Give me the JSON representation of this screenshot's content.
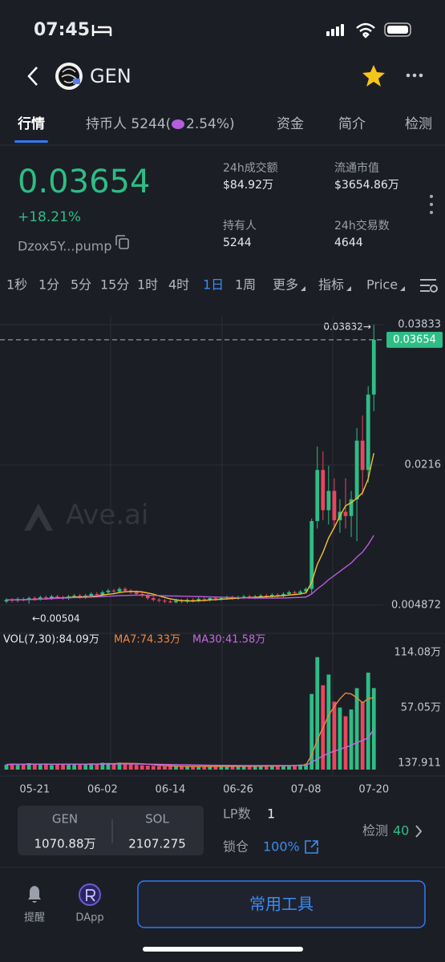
{
  "status_bar": {
    "time": "07:45"
  },
  "header": {
    "symbol": "GEN"
  },
  "tabs": {
    "market": "行情",
    "holders": "持币人 5244(",
    "holders_pct": "2.54%)",
    "funds": "资金",
    "intro": "简介",
    "check": "检测"
  },
  "price": {
    "value": "0.03654",
    "change": "+18.21%",
    "address": "Dzox5Y...pump"
  },
  "stats": [
    {
      "label": "24h成交额",
      "value": "$84.92万"
    },
    {
      "label": "流通市值",
      "value": "$3654.86万"
    },
    {
      "label": "持有人",
      "value": "5244"
    },
    {
      "label": "24h交易数",
      "value": "4644"
    }
  ],
  "intervals": [
    "1秒",
    "1分",
    "5分",
    "15分",
    "1时",
    "4时",
    "1日",
    "1周",
    "更多",
    "指标",
    "Price"
  ],
  "chart_data": [
    {
      "type": "candlestick",
      "up_color": "#2ebd85",
      "down_color": "#e8475f",
      "grid": true,
      "ylim": [
        0.0015,
        0.0393
      ],
      "yticks": [
        0.004872,
        0.0216,
        0.03833
      ],
      "current_price": 0.03654,
      "max_label": "0.03832→",
      "min_label": "←0.00504",
      "watermark": "Ave.ai",
      "open": [
        0.0053,
        0.0055,
        0.0054,
        0.0056,
        0.0055,
        0.0057,
        0.0056,
        0.0058,
        0.0057,
        0.0059,
        0.0058,
        0.0057,
        0.0059,
        0.006,
        0.0058,
        0.006,
        0.0062,
        0.0061,
        0.0064,
        0.0066,
        0.0065,
        0.0068,
        0.0066,
        0.0064,
        0.0062,
        0.006,
        0.0057,
        0.0055,
        0.0054,
        0.0053,
        0.0052,
        0.0054,
        0.0053,
        0.0055,
        0.0054,
        0.0056,
        0.0055,
        0.0057,
        0.0056,
        0.0057,
        0.0058,
        0.0057,
        0.0058,
        0.0059,
        0.0058,
        0.0059,
        0.006,
        0.0059,
        0.0061,
        0.006,
        0.0062,
        0.0064,
        0.0063,
        0.0065,
        0.0068,
        0.0149,
        0.021,
        0.0162,
        0.0185,
        0.015,
        0.016,
        0.0155,
        0.0175,
        0.0245,
        0.021,
        0.03
      ],
      "high": [
        0.0057,
        0.0057,
        0.0058,
        0.0058,
        0.0059,
        0.0059,
        0.006,
        0.006,
        0.0061,
        0.0061,
        0.006,
        0.0061,
        0.0062,
        0.0062,
        0.0062,
        0.0064,
        0.0064,
        0.0066,
        0.0068,
        0.0068,
        0.007,
        0.007,
        0.0068,
        0.0066,
        0.0064,
        0.0062,
        0.0059,
        0.0057,
        0.0056,
        0.0055,
        0.0056,
        0.0056,
        0.0057,
        0.0057,
        0.0058,
        0.0058,
        0.0059,
        0.0059,
        0.0059,
        0.006,
        0.006,
        0.006,
        0.0061,
        0.0061,
        0.0061,
        0.0062,
        0.0062,
        0.0063,
        0.0063,
        0.0064,
        0.0066,
        0.0066,
        0.0067,
        0.007,
        0.0152,
        0.0238,
        0.0232,
        0.0215,
        0.02,
        0.0175,
        0.02,
        0.0185,
        0.026,
        0.0275,
        0.031,
        0.03832
      ],
      "low": [
        0.0051,
        0.0052,
        0.0052,
        0.0053,
        0.00504,
        0.0054,
        0.0054,
        0.0055,
        0.0055,
        0.0056,
        0.0055,
        0.0055,
        0.0057,
        0.0056,
        0.0056,
        0.0058,
        0.0059,
        0.0059,
        0.0062,
        0.0063,
        0.0063,
        0.0064,
        0.0062,
        0.006,
        0.0058,
        0.0055,
        0.0053,
        0.0052,
        0.0051,
        0.0051,
        0.0051,
        0.0051,
        0.0051,
        0.0052,
        0.0052,
        0.0053,
        0.0053,
        0.0054,
        0.0054,
        0.0055,
        0.0055,
        0.0055,
        0.0056,
        0.0056,
        0.0056,
        0.0057,
        0.0057,
        0.0057,
        0.0058,
        0.0058,
        0.006,
        0.0061,
        0.0061,
        0.0063,
        0.0062,
        0.014,
        0.015,
        0.0145,
        0.014,
        0.0135,
        0.014,
        0.013,
        0.0125,
        0.018,
        0.0195,
        0.028
      ],
      "close": [
        0.0055,
        0.0054,
        0.0056,
        0.0055,
        0.0057,
        0.0056,
        0.0058,
        0.0057,
        0.0059,
        0.0058,
        0.0057,
        0.0059,
        0.006,
        0.0058,
        0.006,
        0.0062,
        0.0061,
        0.0064,
        0.0066,
        0.0065,
        0.0068,
        0.0066,
        0.0064,
        0.0062,
        0.006,
        0.0057,
        0.0055,
        0.0054,
        0.0053,
        0.0052,
        0.0054,
        0.0053,
        0.0055,
        0.0054,
        0.0056,
        0.0055,
        0.0057,
        0.0056,
        0.0057,
        0.0058,
        0.0057,
        0.0058,
        0.0059,
        0.0058,
        0.0059,
        0.006,
        0.0059,
        0.0061,
        0.006,
        0.0062,
        0.0064,
        0.0063,
        0.0065,
        0.0068,
        0.0149,
        0.021,
        0.0162,
        0.0185,
        0.015,
        0.016,
        0.0155,
        0.0175,
        0.0245,
        0.021,
        0.03,
        0.03654
      ],
      "lines": [
        {
          "color": "#f2c12e",
          "values": [
            0.0055,
            0.0055,
            0.0055,
            0.0055,
            0.00554,
            0.00555,
            0.00559,
            0.00561,
            0.00569,
            0.00571,
            0.00574,
            0.00577,
            0.00583,
            0.00583,
            0.00587,
            0.00591,
            0.00596,
            0.00606,
            0.00616,
            0.00623,
            0.00637,
            0.00646,
            0.00649,
            0.0065,
            0.00644,
            0.00631,
            0.00617,
            0.00597,
            0.00579,
            0.00561,
            0.0055,
            0.0054,
            0.00537,
            0.00536,
            0.00539,
            0.00541,
            0.00549,
            0.00551,
            0.00557,
            0.00561,
            0.00566,
            0.00569,
            0.00574,
            0.00576,
            0.0058,
            0.00584,
            0.00586,
            0.00591,
            0.00594,
            0.00599,
            0.00607,
            0.00613,
            0.0062,
            0.00633,
            0.00759,
            0.00973,
            0.01116,
            0.01289,
            0.01413,
            0.01549,
            0.01673,
            0.0171,
            0.0176,
            0.01829,
            0.01993,
            0.02301
          ]
        },
        {
          "color": "#b95be0",
          "values": [
            0.0055,
            0.0055,
            0.0055,
            0.0055,
            0.00554,
            0.00555,
            0.00559,
            0.00561,
            0.00565,
            0.00568,
            0.0057,
            0.00573,
            0.00576,
            0.00578,
            0.0058,
            0.00583,
            0.00585,
            0.00589,
            0.00593,
            0.00596,
            0.006,
            0.00602,
            0.00604,
            0.00605,
            0.00605,
            0.00604,
            0.00602,
            0.006,
            0.00598,
            0.00596,
            0.00595,
            0.00593,
            0.00592,
            0.0059,
            0.00589,
            0.00587,
            0.00585,
            0.00583,
            0.00581,
            0.00579,
            0.00577,
            0.00575,
            0.00573,
            0.00572,
            0.00571,
            0.0057,
            0.0057,
            0.0057,
            0.00571,
            0.00572,
            0.00574,
            0.00576,
            0.00579,
            0.00583,
            0.0062,
            0.0068,
            0.0073,
            0.0079,
            0.0084,
            0.0089,
            0.0094,
            0.0099,
            0.0106,
            0.0112,
            0.0121,
            0.0132
          ]
        }
      ]
    },
    {
      "type": "bar",
      "up_color": "#2ebd85",
      "down_color": "#e8475f",
      "grid": false,
      "legend": [
        "VOL(7,30):84.09万",
        "MA7:74.33万",
        "MA30:41.58万"
      ],
      "ylim": [
        0,
        1240000
      ],
      "yticks": [
        137.911,
        {
          "value": 570500,
          "label": "57.05万"
        },
        {
          "value": 1140800,
          "label": "114.08万"
        }
      ],
      "categories": [
        null,
        null,
        null,
        null,
        null,
        "05-21",
        null,
        null,
        null,
        null,
        null,
        null,
        null,
        null,
        null,
        null,
        null,
        "06-02",
        null,
        null,
        null,
        null,
        null,
        null,
        null,
        null,
        null,
        null,
        null,
        "06-14",
        null,
        null,
        null,
        null,
        null,
        null,
        null,
        null,
        null,
        null,
        null,
        "06-26",
        null,
        null,
        null,
        null,
        null,
        null,
        null,
        null,
        null,
        null,
        null,
        "07-08",
        null,
        null,
        null,
        null,
        null,
        null,
        null,
        null,
        null,
        null,
        null,
        "07-20"
      ],
      "values": [
        52000,
        61000,
        48000,
        57000,
        66000,
        50000,
        55000,
        60000,
        47000,
        53000,
        58000,
        62000,
        49000,
        56000,
        51000,
        64000,
        57000,
        70000,
        68000,
        59000,
        72000,
        61000,
        55000,
        49000,
        45000,
        41000,
        38000,
        36000,
        34000,
        33000,
        35000,
        32000,
        34000,
        31000,
        33000,
        36000,
        32000,
        34000,
        35000,
        33000,
        37000,
        34000,
        36000,
        35000,
        38000,
        36000,
        40000,
        37000,
        42000,
        39000,
        45000,
        48000,
        52000,
        60000,
        780000,
        1160000,
        870000,
        980000,
        700000,
        640000,
        550000,
        620000,
        840000,
        700000,
        1000000,
        840900
      ],
      "lines": [
        {
          "color": "#f0883e",
          "values": [
            52000,
            56000,
            54000,
            55000,
            57000,
            56000,
            56000,
            57000,
            55000,
            55000,
            55000,
            56000,
            55000,
            55000,
            55000,
            57000,
            57000,
            59000,
            60000,
            61000,
            63000,
            64000,
            63000,
            62000,
            59000,
            55000,
            50000,
            45000,
            41000,
            39000,
            37000,
            35000,
            34000,
            33000,
            33000,
            33000,
            33000,
            33000,
            34000,
            34000,
            34000,
            35000,
            35000,
            35000,
            36000,
            36000,
            37000,
            37000,
            38000,
            39000,
            40000,
            42000,
            45000,
            48000,
            150000,
            310000,
            430000,
            560000,
            650000,
            730000,
            790000,
            780000,
            740000,
            690000,
            730000,
            743300
          ]
        },
        {
          "color": "#c46be0",
          "values": [
            52000,
            54000,
            54000,
            54000,
            55000,
            55000,
            55000,
            55000,
            55000,
            55000,
            55000,
            55000,
            55000,
            55000,
            55000,
            56000,
            56000,
            56000,
            57000,
            57000,
            58000,
            58000,
            58000,
            57000,
            57000,
            56000,
            55000,
            54000,
            53000,
            52000,
            51000,
            50000,
            49000,
            48000,
            47000,
            46000,
            45000,
            45000,
            44000,
            44000,
            43000,
            43000,
            42000,
            42000,
            42000,
            42000,
            42000,
            42000,
            42000,
            42000,
            42000,
            42000,
            43000,
            44000,
            75000,
            110000,
            140000,
            170000,
            190000,
            210000,
            230000,
            250000,
            280000,
            300000,
            330000,
            415800
          ]
        }
      ]
    }
  ],
  "pool": {
    "base": "GEN",
    "base_amount": "1070.88万",
    "quote": "SOL",
    "quote_amount": "2107.275",
    "lp_label": "LP数",
    "lp_value": "1",
    "lock_label": "锁仓",
    "lock_value": "100%",
    "check_label": "检测",
    "check_value": "40"
  },
  "nav": {
    "alerts": "提醒",
    "dapp": "DApp",
    "tools": "常用工具"
  }
}
